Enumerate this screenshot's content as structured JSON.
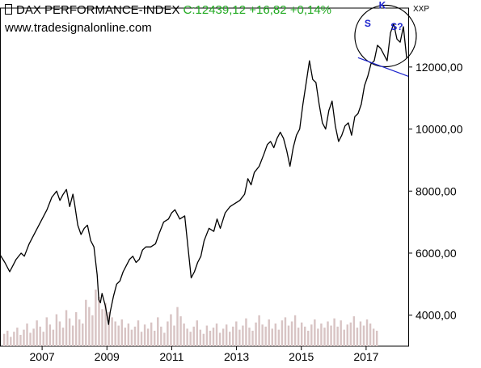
{
  "header": {
    "index_name": "DAX PERFORMANCE-INDEX",
    "quote": "C:12439,12 +16,82 +0,14%",
    "source": "www.tradesignalonline.com",
    "axis_code": "XXP"
  },
  "chart_data": {
    "type": "line",
    "title": "DAX PERFORMANCE-INDEX",
    "ylim": [
      3000,
      13900
    ],
    "y_ticks": [
      4000,
      6000,
      8000,
      10000,
      12000
    ],
    "y_tick_labels": [
      "4000,00",
      "6000,00",
      "8000,00",
      "10000,00",
      "12000,00"
    ],
    "x_ticks": [
      2007,
      2009,
      2011,
      2013,
      2015,
      2017
    ],
    "x_tick_labels": [
      "2007",
      "2009",
      "2011",
      "2013",
      "2015",
      "2017"
    ],
    "xlim": [
      2005.7,
      2018.3
    ],
    "grid": false,
    "y_axis_position": "right",
    "series": [
      {
        "x": [
          2005.7,
          2005.85,
          2006.0,
          2006.1,
          2006.2,
          2006.35,
          2006.45,
          2006.6,
          2006.75,
          2006.9,
          2007.0,
          2007.15,
          2007.3,
          2007.45,
          2007.55,
          2007.65,
          2007.75,
          2007.85,
          2007.95,
          2008.0,
          2008.1,
          2008.2,
          2008.3,
          2008.4,
          2008.5,
          2008.6,
          2008.7,
          2008.75,
          2008.8,
          2008.85,
          2008.95,
          2009.05,
          2009.1,
          2009.2,
          2009.3,
          2009.4,
          2009.5,
          2009.6,
          2009.7,
          2009.8,
          2009.9,
          2010.0,
          2010.1,
          2010.2,
          2010.35,
          2010.5,
          2010.6,
          2010.75,
          2010.9,
          2011.0,
          2011.1,
          2011.25,
          2011.4,
          2011.5,
          2011.6,
          2011.7,
          2011.8,
          2011.9,
          2012.0,
          2012.15,
          2012.3,
          2012.4,
          2012.5,
          2012.65,
          2012.8,
          2012.95,
          2013.1,
          2013.25,
          2013.35,
          2013.45,
          2013.55,
          2013.7,
          2013.85,
          2013.95,
          2014.05,
          2014.15,
          2014.25,
          2014.35,
          2014.45,
          2014.55,
          2014.65,
          2014.75,
          2014.85,
          2014.95,
          2015.05,
          2015.15,
          2015.25,
          2015.35,
          2015.45,
          2015.55,
          2015.65,
          2015.75,
          2015.85,
          2015.95,
          2016.05,
          2016.15,
          2016.25,
          2016.35,
          2016.45,
          2016.55,
          2016.65,
          2016.75,
          2016.85,
          2016.95,
          2017.05,
          2017.15,
          2017.25,
          2017.35,
          2017.45,
          2017.55,
          2017.65,
          2017.75,
          2017.85,
          2017.95,
          2018.05,
          2018.15,
          2018.25
        ],
        "y": [
          5950,
          5700,
          5400,
          5600,
          5800,
          6000,
          5900,
          6300,
          6600,
          6900,
          7100,
          7400,
          7800,
          8000,
          7700,
          7900,
          8050,
          7500,
          7900,
          7600,
          6900,
          6600,
          6800,
          6900,
          6400,
          6200,
          5300,
          4500,
          4400,
          4700,
          4300,
          3700,
          4100,
          4600,
          5000,
          5100,
          5400,
          5600,
          5800,
          5900,
          5700,
          5800,
          6100,
          6200,
          6200,
          6300,
          6600,
          7000,
          7100,
          7300,
          7400,
          7100,
          7200,
          6200,
          5200,
          5400,
          5700,
          5900,
          6400,
          6800,
          6700,
          7100,
          6800,
          7300,
          7500,
          7600,
          7700,
          7900,
          8400,
          8200,
          8600,
          8800,
          9200,
          9500,
          9600,
          9400,
          9700,
          9900,
          9700,
          9300,
          8800,
          9400,
          9800,
          10000,
          10800,
          11500,
          12200,
          11600,
          11500,
          10800,
          10200,
          10000,
          10600,
          10900,
          10100,
          9600,
          9800,
          10100,
          10200,
          9800,
          10400,
          10500,
          10800,
          11400,
          11700,
          12100,
          12200,
          12700,
          12600,
          12400,
          12200,
          13100,
          13400,
          12900,
          12800,
          13300,
          12300
        ]
      }
    ],
    "volume": [
      12,
      15,
      9,
      14,
      18,
      11,
      16,
      22,
      13,
      17,
      25,
      19,
      14,
      28,
      21,
      16,
      31,
      24,
      18,
      35,
      27,
      20,
      33,
      26,
      22,
      45,
      38,
      30,
      55,
      48,
      36,
      42,
      33,
      28,
      24,
      20,
      26,
      18,
      22,
      16,
      19,
      25,
      14,
      21,
      17,
      23,
      15,
      28,
      19,
      13,
      24,
      31,
      20,
      38,
      29,
      22,
      17,
      14,
      19,
      25,
      16,
      12,
      20,
      15,
      18,
      22,
      13,
      17,
      21,
      14,
      19,
      24,
      16,
      20,
      27,
      18,
      15,
      23,
      30,
      21,
      19,
      26,
      17,
      22,
      16,
      25,
      28,
      20,
      24,
      30,
      18,
      23,
      19,
      15,
      21,
      26,
      17,
      22,
      18,
      24,
      20,
      27,
      19,
      25,
      16,
      21,
      23,
      29,
      18,
      24,
      20,
      26,
      22,
      17,
      15
    ],
    "annotations": [
      {
        "text": "S",
        "x": 2017.05,
        "y": 13300
      },
      {
        "text": "K",
        "x": 2017.5,
        "y": 13890
      },
      {
        "text": "S?",
        "x": 2017.95,
        "y": 13200
      }
    ]
  },
  "colors": {
    "price_line": "#000000",
    "volume_bar": "#d8c4c4",
    "annotation": "#1a22cc",
    "quote_green": "#22aa22"
  }
}
